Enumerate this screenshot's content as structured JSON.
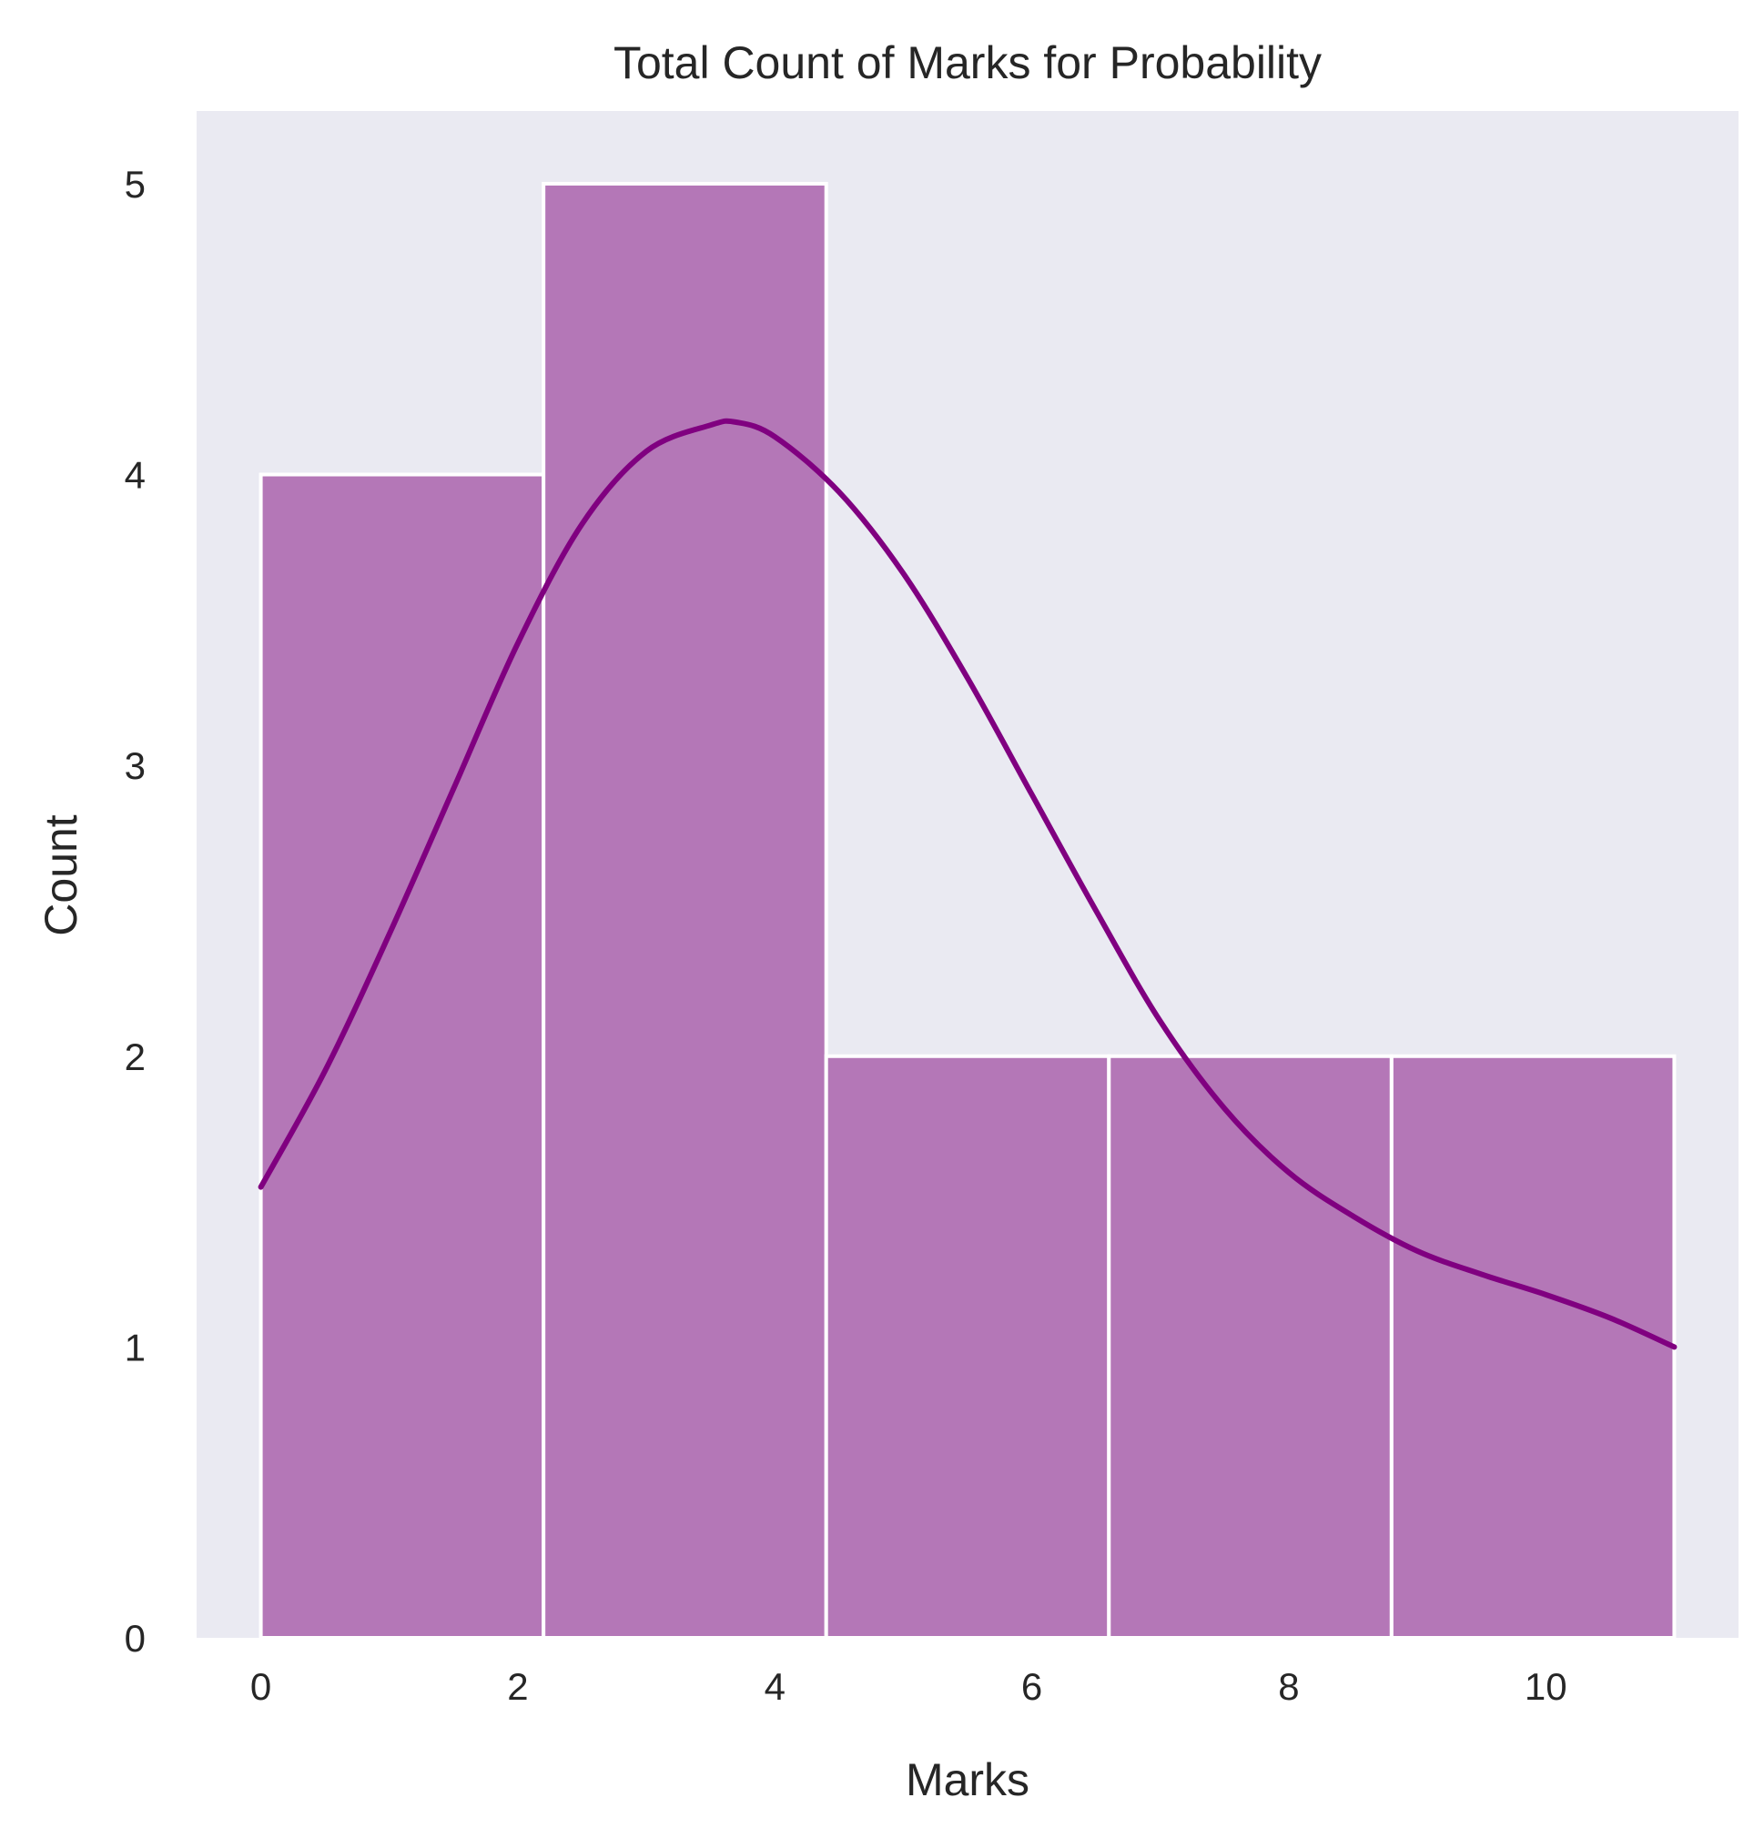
{
  "chart_data": {
    "type": "bar",
    "title": "Total Count of Marks for Probability",
    "xlabel": "Marks",
    "ylabel": "Count",
    "xlim": [
      -0.5,
      11.5
    ],
    "ylim": [
      0,
      5.25
    ],
    "xticks": [
      0,
      2,
      4,
      6,
      8,
      10
    ],
    "yticks": [
      0,
      1,
      2,
      3,
      4,
      5
    ],
    "bins": [
      {
        "x0": 0.0,
        "x1": 2.2,
        "count": 4
      },
      {
        "x0": 2.2,
        "x1": 4.4,
        "count": 5
      },
      {
        "x0": 4.4,
        "x1": 6.6,
        "count": 2
      },
      {
        "x0": 6.6,
        "x1": 8.8,
        "count": 2
      },
      {
        "x0": 8.8,
        "x1": 11.0,
        "count": 2
      }
    ],
    "kde": {
      "x": [
        0,
        0.5,
        1.0,
        1.5,
        2.0,
        2.5,
        3.0,
        3.5,
        3.7,
        4.0,
        4.5,
        5.0,
        5.5,
        6.0,
        6.5,
        7.0,
        7.5,
        8.0,
        8.5,
        9.0,
        9.5,
        10.0,
        10.5,
        11.0
      ],
      "y": [
        1.55,
        1.95,
        2.42,
        2.92,
        3.42,
        3.83,
        4.08,
        4.17,
        4.18,
        4.13,
        3.94,
        3.66,
        3.3,
        2.9,
        2.5,
        2.12,
        1.82,
        1.6,
        1.45,
        1.33,
        1.25,
        1.18,
        1.1,
        1.0
      ]
    },
    "grid": false,
    "colors": {
      "bar_fill": "#b477b7",
      "kde_line": "#800080",
      "plot_background": "#eaeaf2"
    }
  }
}
